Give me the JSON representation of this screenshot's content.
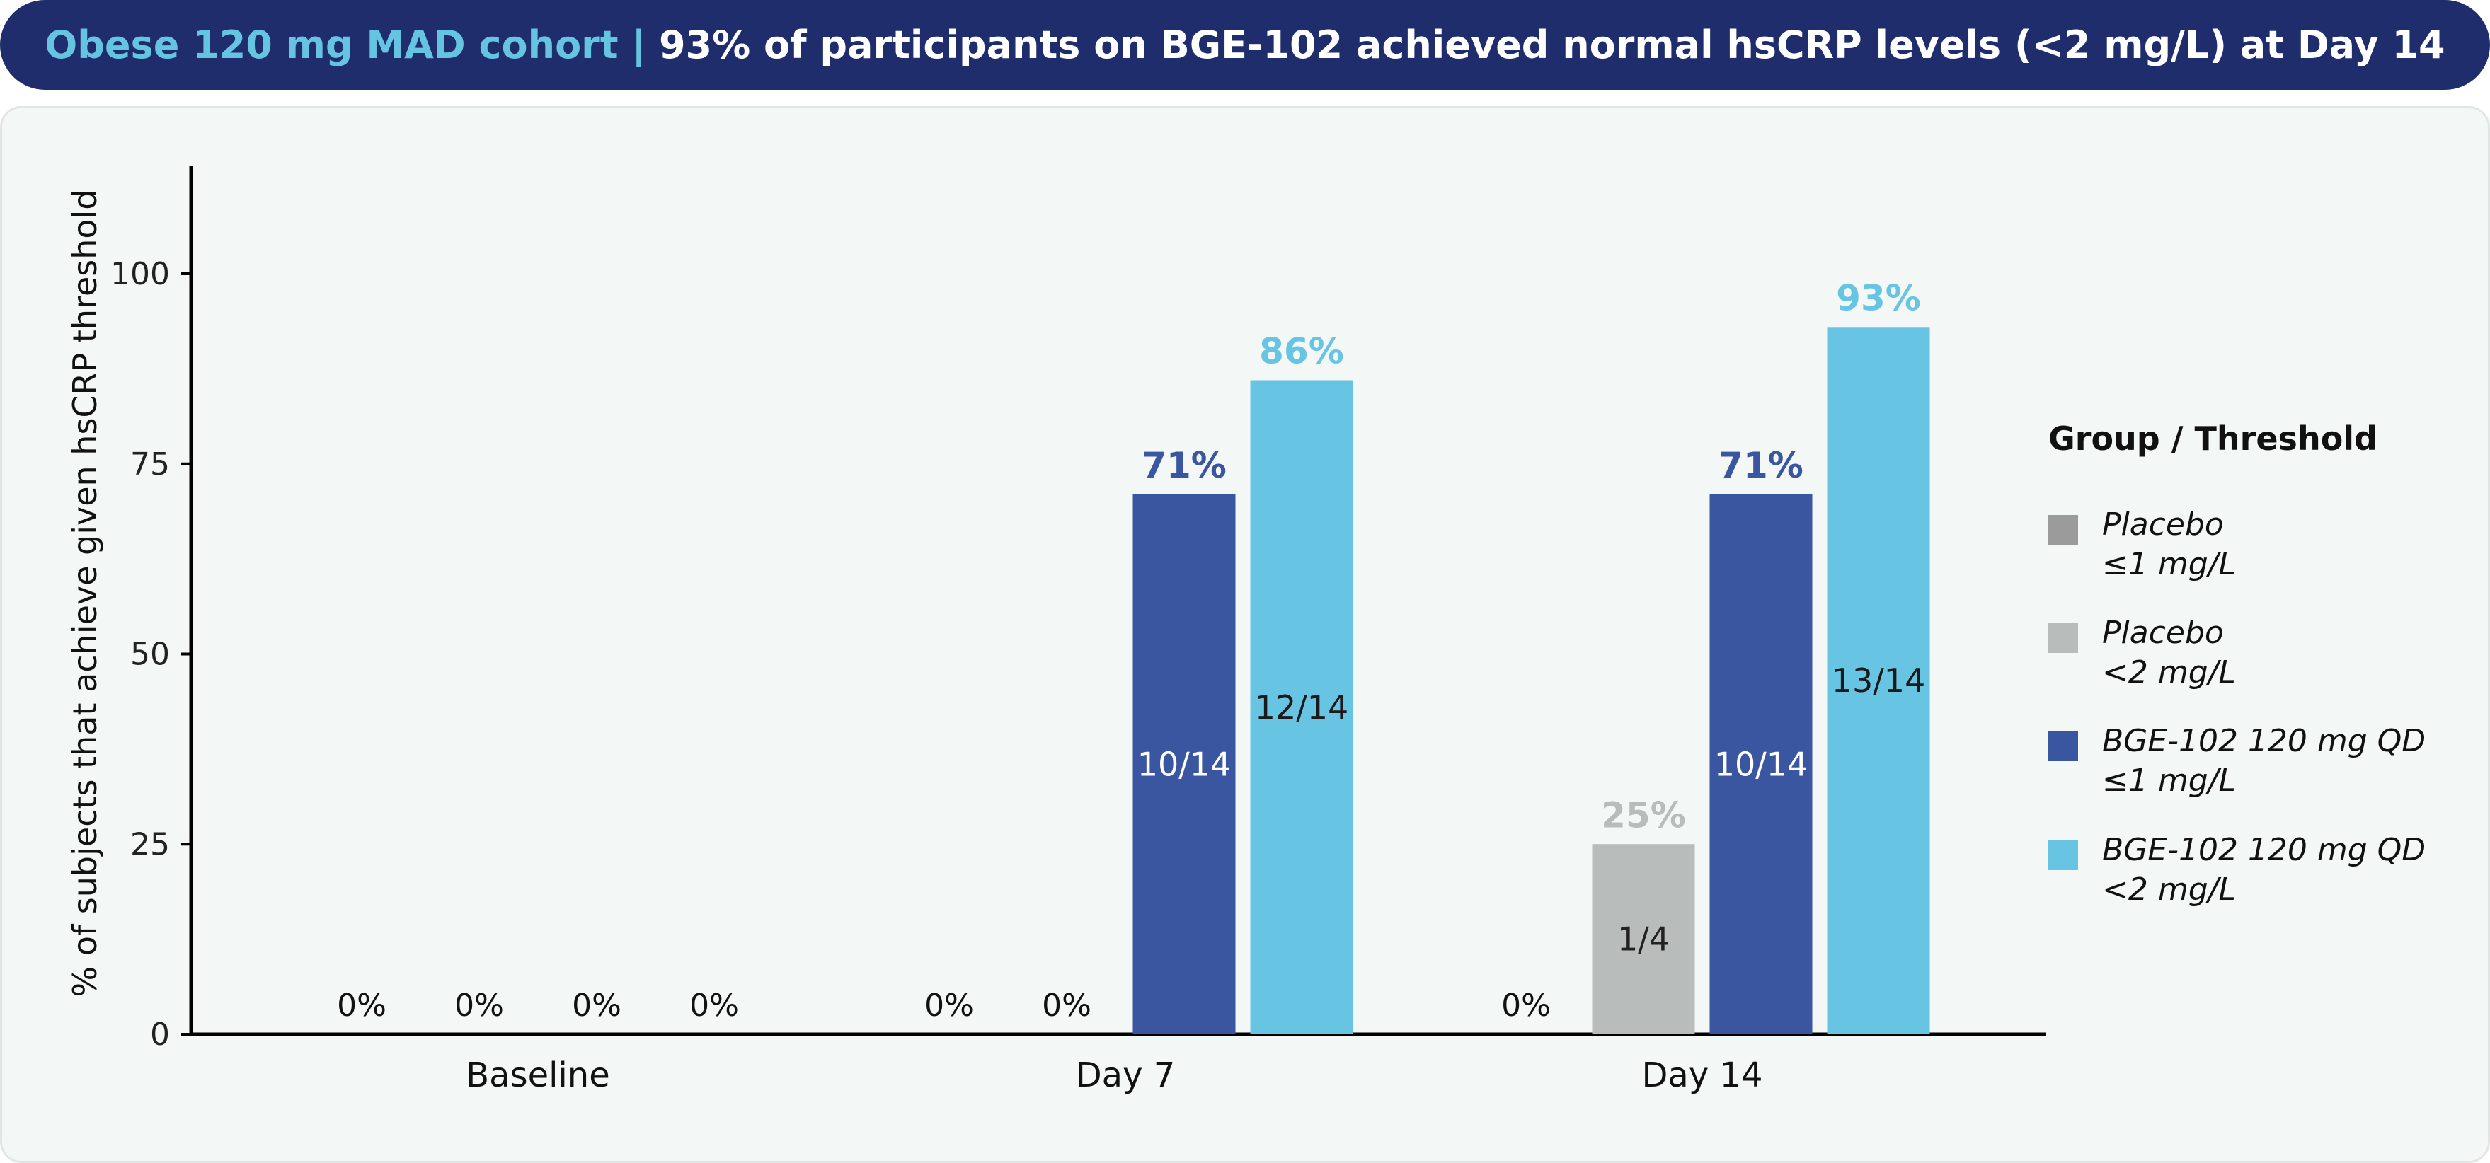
{
  "banner": {
    "highlight": "Obese 120 mg MAD cohort |",
    "text": " 93% of participants on BGE-102 achieved normal hsCRP levels (<2 mg/L) at Day 14"
  },
  "chart_data": {
    "type": "bar",
    "title": "",
    "xlabel": "",
    "ylabel": "% of subjects that achieve given hsCRP threshold",
    "ylim": [
      0,
      113
    ],
    "yticks": [
      0,
      25,
      50,
      75,
      100
    ],
    "grid": false,
    "legend_position": "right",
    "legend_title": "Group / Threshold",
    "categories": [
      "Baseline",
      "Day 7",
      "Day 14"
    ],
    "series": [
      {
        "name": "Placebo ≤1 mg/L",
        "legend_line1": "Placebo",
        "legend_line2": "≤1 mg/L",
        "color": "#9b9b9b",
        "values": [
          0,
          0,
          0
        ],
        "pct_labels": [
          "0%",
          "0%",
          "0%"
        ],
        "count_labels": [
          "",
          "",
          ""
        ]
      },
      {
        "name": "Placebo <2 mg/L",
        "legend_line1": "Placebo",
        "legend_line2": "<2 mg/L",
        "color": "#b8bcbb",
        "values": [
          0,
          0,
          25
        ],
        "pct_labels": [
          "0%",
          "0%",
          "25%"
        ],
        "count_labels": [
          "",
          "",
          "1/4"
        ]
      },
      {
        "name": "BGE-102 120 mg QD ≤1 mg/L",
        "legend_line1": "BGE-102 120 mg QD",
        "legend_line2": "≤1 mg/L",
        "color": "#3a56a0",
        "values": [
          0,
          71,
          71
        ],
        "pct_labels": [
          "0%",
          "71%",
          "71%"
        ],
        "count_labels": [
          "",
          "10/14",
          "10/14"
        ]
      },
      {
        "name": "BGE-102 120 mg QD <2 mg/L",
        "legend_line1": "BGE-102 120 mg QD",
        "legend_line2": "<2 mg/L",
        "color": "#67c5e3",
        "values": [
          0,
          86,
          93
        ],
        "pct_labels": [
          "0%",
          "86%",
          "93%"
        ],
        "count_labels": [
          "",
          "12/14",
          "13/14"
        ]
      }
    ]
  }
}
